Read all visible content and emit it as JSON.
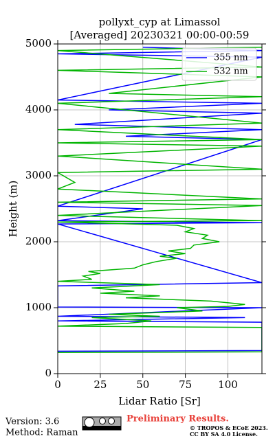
{
  "chart_data": {
    "type": "line",
    "title": [
      "pollyxt_cyp at Limassol",
      "[Averaged] 20230321 00:00-00:59"
    ],
    "x_label": "Lidar Ratio [Sr]",
    "y_label": "Height (m)",
    "xlim": [
      0,
      120
    ],
    "ylim": [
      0,
      5000
    ],
    "xticks": [
      0,
      25,
      50,
      75,
      100
    ],
    "yticks": [
      0,
      1000,
      2000,
      3000,
      4000,
      5000
    ],
    "grid": true,
    "legend": "upper right",
    "series": [
      {
        "name": "355 nm",
        "color": "#0000ff",
        "y": [
          340,
          350,
          780,
          800,
          850,
          870,
          1000,
          1010,
          1330,
          1380,
          2270,
          2290,
          2320,
          2500,
          2540,
          3550,
          3600,
          3700,
          3780,
          3950,
          4000,
          4100,
          4150,
          4800,
          4850,
          4900,
          4950
        ],
        "x": [
          0,
          120,
          120,
          0,
          110,
          0,
          120,
          0,
          0,
          120,
          0,
          120,
          0,
          50,
          0,
          120,
          40,
          120,
          10,
          120,
          30,
          120,
          0,
          120,
          0,
          120,
          50
        ]
      },
      {
        "name": "532 nm",
        "color": "#00b400",
        "y": [
          320,
          330,
          700,
          720,
          760,
          800,
          850,
          870,
          900,
          950,
          1000,
          1020,
          1050,
          1100,
          1150,
          1180,
          1220,
          1250,
          1300,
          1350,
          1400,
          1430,
          1480,
          1520,
          1550,
          1600,
          1650,
          1700,
          1750,
          1780,
          1820,
          1860,
          1900,
          1950,
          2000,
          2050,
          2100,
          2150,
          2200,
          2250,
          2300,
          2320,
          2400,
          2550,
          2600,
          2650,
          2800,
          2900,
          3050,
          3100,
          3300,
          3450,
          3500,
          3550,
          3700,
          3800,
          4100,
          4200,
          4250,
          4500,
          4600,
          4650,
          4900,
          4950
        ],
        "x": [
          0,
          120,
          120,
          0,
          40,
          55,
          20,
          60,
          30,
          85,
          70,
          100,
          110,
          90,
          40,
          60,
          25,
          45,
          20,
          60,
          0,
          20,
          15,
          25,
          18,
          45,
          50,
          58,
          70,
          60,
          75,
          65,
          78,
          80,
          95,
          85,
          88,
          75,
          80,
          70,
          0,
          120,
          0,
          120,
          0,
          120,
          0,
          10,
          0,
          120,
          0,
          120,
          0,
          120,
          0,
          120,
          0,
          120,
          30,
          120,
          0,
          120,
          0,
          120
        ]
      }
    ]
  },
  "footer": {
    "version": "Version: 3.6",
    "method": "Method: Raman",
    "status": "Preliminary Results.",
    "copyright": "© TROPOS & ECoE 2023.",
    "license": "CC BY SA 4.0 License."
  }
}
